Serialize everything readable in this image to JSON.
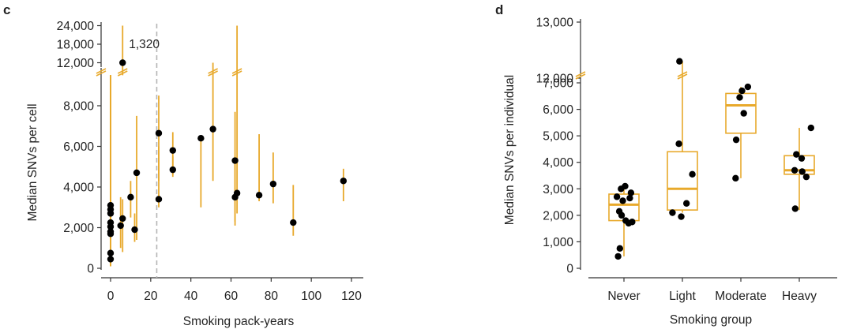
{
  "colors": {
    "accent": "#E8A92B",
    "point": "#000000",
    "axis": "#333333",
    "reference_line": "#B5B5B5"
  },
  "chart_data": [
    {
      "panel": "c",
      "type": "scatter",
      "xlabel": "Smoking pack-years",
      "ylabel": "Median SNVs per cell",
      "xlim": [
        0,
        120
      ],
      "x_ticks": [
        0,
        20,
        40,
        60,
        80,
        100,
        120
      ],
      "y_ticks_lower": [
        0,
        2000,
        4000,
        6000,
        8000
      ],
      "y_ticks_upper": [
        12000,
        18000,
        24000
      ],
      "y_tick_labels": {
        "0": "0",
        "2000": "2,000",
        "4000": "4,000",
        "6000": "6,000",
        "8000": "8,000",
        "12000": "12,000",
        "18000": "18,000",
        "24000": "24,000"
      },
      "axis_break": true,
      "reference_line_x": 23,
      "annotation": {
        "text": "1,320",
        "x": 6
      },
      "points": [
        {
          "x": 0,
          "y": 3100,
          "low": 100,
          "high": 9500
        },
        {
          "x": 0,
          "y": 2900,
          "low": 100,
          "high": 9500
        },
        {
          "x": 0,
          "y": 2700,
          "low": 100,
          "high": 9500
        },
        {
          "x": 0,
          "y": 2250,
          "low": 100,
          "high": 9500
        },
        {
          "x": 0,
          "y": 2050,
          "low": 100,
          "high": 9500
        },
        {
          "x": 0,
          "y": 1800,
          "low": 100,
          "high": 9500
        },
        {
          "x": 0,
          "y": 1700,
          "low": 100,
          "high": 9500
        },
        {
          "x": 0,
          "y": 750,
          "low": 100,
          "high": 9500
        },
        {
          "x": 0,
          "y": 450,
          "low": 100,
          "high": 9500
        },
        {
          "x": 5,
          "y": 2100,
          "low": 1000,
          "high": 3500
        },
        {
          "x": 6,
          "y": 2450,
          "low": 800,
          "high": 3400
        },
        {
          "x": 6,
          "y": 12000,
          "low": 9500,
          "high": 24000
        },
        {
          "x": 10,
          "y": 3500,
          "low": 2500,
          "high": 4300
        },
        {
          "x": 12,
          "y": 1900,
          "low": 1300,
          "high": 2700
        },
        {
          "x": 13,
          "y": 4700,
          "low": 1400,
          "high": 7500
        },
        {
          "x": 24,
          "y": 6650,
          "low": 4300,
          "high": 8500
        },
        {
          "x": 24,
          "y": 3400,
          "low": 3000,
          "high": 6000
        },
        {
          "x": 31,
          "y": 5800,
          "low": 4600,
          "high": 6700
        },
        {
          "x": 31,
          "y": 4850,
          "low": 4500,
          "high": 5500
        },
        {
          "x": 45,
          "y": 6400,
          "low": 3000,
          "high": 6500
        },
        {
          "x": 51,
          "y": 6850,
          "low": 4300,
          "high": 12000
        },
        {
          "x": 62,
          "y": 5300,
          "low": 2100,
          "high": 7700
        },
        {
          "x": 62,
          "y": 3500,
          "low": 2300,
          "high": 5500
        },
        {
          "x": 63,
          "y": 3700,
          "low": 2700,
          "high": 24000
        },
        {
          "x": 74,
          "y": 3600,
          "low": 3300,
          "high": 6600
        },
        {
          "x": 81,
          "y": 4150,
          "low": 3200,
          "high": 5700
        },
        {
          "x": 91,
          "y": 2250,
          "low": 1600,
          "high": 4100
        },
        {
          "x": 116,
          "y": 4300,
          "low": 3300,
          "high": 4900
        }
      ]
    },
    {
      "panel": "d",
      "type": "box",
      "xlabel": "Smoking group",
      "ylabel": "Median SNVs per individual",
      "categories": [
        "Never",
        "Light",
        "Moderate",
        "Heavy"
      ],
      "y_ticks_lower": [
        0,
        1000,
        2000,
        3000,
        4000,
        5000,
        6000,
        7000
      ],
      "y_ticks_upper": [
        12000,
        13000
      ],
      "y_tick_labels": {
        "0": "0",
        "1000": "1,000",
        "2000": "2,000",
        "3000": "3,000",
        "4000": "4,000",
        "5000": "5,000",
        "6000": "6,000",
        "7000": "7,000",
        "12000": "12,000",
        "13000": "13,000"
      },
      "axis_break": true,
      "boxes": [
        {
          "category": "Never",
          "q1": 1800,
          "median": 2400,
          "q3": 2800,
          "whisker_low": 450,
          "whisker_high": 3100
        },
        {
          "category": "Light",
          "q1": 2200,
          "median": 3000,
          "q3": 4400,
          "whisker_low": 2100,
          "whisker_high": 12300
        },
        {
          "category": "Moderate",
          "q1": 5100,
          "median": 6150,
          "q3": 6600,
          "whisker_low": 3400,
          "whisker_high": 6850
        },
        {
          "category": "Heavy",
          "q1": 3550,
          "median": 3700,
          "q3": 4250,
          "whisker_low": 2200,
          "whisker_high": 5300
        }
      ],
      "points": [
        {
          "category": "Never",
          "jitter": -0.12,
          "y": 2700
        },
        {
          "category": "Never",
          "jitter": -0.05,
          "y": 3000
        },
        {
          "category": "Never",
          "jitter": 0.02,
          "y": 3100
        },
        {
          "category": "Never",
          "jitter": 0.12,
          "y": 2850
        },
        {
          "category": "Never",
          "jitter": 0.1,
          "y": 2650
        },
        {
          "category": "Never",
          "jitter": -0.02,
          "y": 2550
        },
        {
          "category": "Never",
          "jitter": -0.08,
          "y": 2150
        },
        {
          "category": "Never",
          "jitter": -0.04,
          "y": 2000
        },
        {
          "category": "Never",
          "jitter": 0.03,
          "y": 1800
        },
        {
          "category": "Never",
          "jitter": 0.14,
          "y": 1750
        },
        {
          "category": "Never",
          "jitter": 0.08,
          "y": 1700
        },
        {
          "category": "Never",
          "jitter": -0.07,
          "y": 750
        },
        {
          "category": "Never",
          "jitter": -0.1,
          "y": 450
        },
        {
          "category": "Light",
          "jitter": -0.05,
          "y": 12300
        },
        {
          "category": "Light",
          "jitter": -0.06,
          "y": 4700
        },
        {
          "category": "Light",
          "jitter": 0.17,
          "y": 3550
        },
        {
          "category": "Light",
          "jitter": 0.07,
          "y": 2450
        },
        {
          "category": "Light",
          "jitter": -0.17,
          "y": 2100
        },
        {
          "category": "Light",
          "jitter": -0.02,
          "y": 1950
        },
        {
          "category": "Moderate",
          "jitter": 0.12,
          "y": 6850
        },
        {
          "category": "Moderate",
          "jitter": 0.02,
          "y": 6700
        },
        {
          "category": "Moderate",
          "jitter": -0.02,
          "y": 6450
        },
        {
          "category": "Moderate",
          "jitter": 0.05,
          "y": 5850
        },
        {
          "category": "Moderate",
          "jitter": -0.08,
          "y": 4850
        },
        {
          "category": "Moderate",
          "jitter": -0.09,
          "y": 3400
        },
        {
          "category": "Heavy",
          "jitter": 0.2,
          "y": 5300
        },
        {
          "category": "Heavy",
          "jitter": -0.05,
          "y": 4300
        },
        {
          "category": "Heavy",
          "jitter": 0.04,
          "y": 4150
        },
        {
          "category": "Heavy",
          "jitter": -0.08,
          "y": 3700
        },
        {
          "category": "Heavy",
          "jitter": 0.05,
          "y": 3650
        },
        {
          "category": "Heavy",
          "jitter": 0.12,
          "y": 3450
        },
        {
          "category": "Heavy",
          "jitter": -0.07,
          "y": 2250
        }
      ]
    }
  ]
}
